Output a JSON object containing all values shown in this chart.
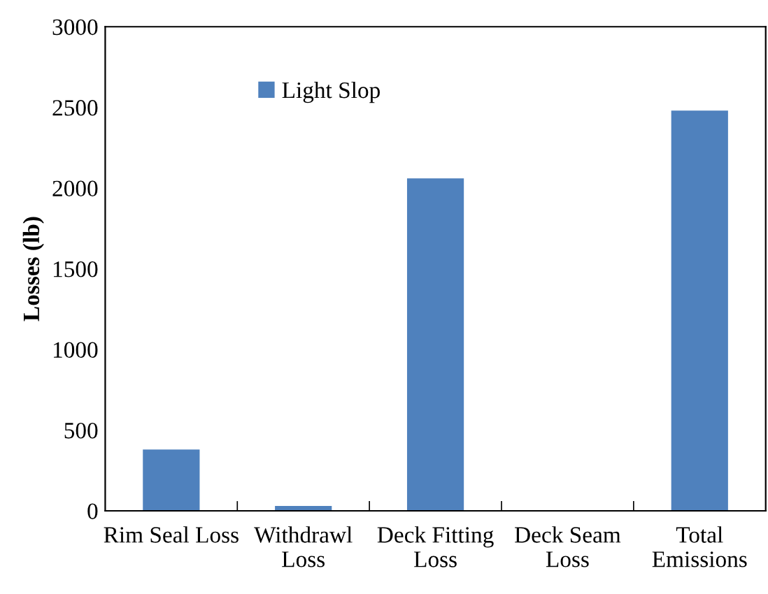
{
  "chart_data": {
    "type": "bar",
    "ylabel": "Losses (lb)",
    "categories": [
      "Rim Seal Loss",
      "Withdrawl\nLoss",
      "Deck Fitting\nLoss",
      "Deck Seam\nLoss",
      "Total\nEmissions"
    ],
    "series": [
      {
        "name": "Light Slop",
        "color": "#4f81bd",
        "values": [
          380,
          30,
          2060,
          0,
          2480
        ]
      }
    ],
    "ylim": [
      0,
      3000
    ],
    "yticks": [
      0,
      500,
      1000,
      1500,
      2000,
      2500,
      3000
    ],
    "grid": false,
    "legend": "top left"
  }
}
